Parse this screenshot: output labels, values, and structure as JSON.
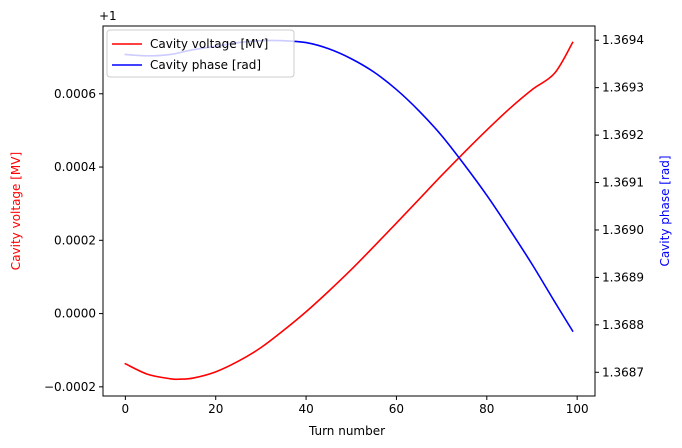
{
  "chart_data": {
    "type": "line",
    "xlabel": "Turn number",
    "ylabel_left": "Cavity voltage [MV]",
    "ylabel_right": "Cavity phase [rad]",
    "offset_label": "+1",
    "xlim": [
      -4.95,
      103.95
    ],
    "ylim_left": [
      -0.000225,
      0.000785
    ],
    "ylim_right": [
      1.36865,
      1.36943
    ],
    "x_ticks": [
      0,
      20,
      40,
      60,
      80,
      100
    ],
    "x_tick_labels": [
      "0",
      "20",
      "40",
      "60",
      "80",
      "100"
    ],
    "left_ticks": [
      -0.0002,
      0.0,
      0.0002,
      0.0004,
      0.0006
    ],
    "left_tick_labels": [
      "−0.0002",
      "0.0000",
      "0.0002",
      "0.0004",
      "0.0006"
    ],
    "right_ticks": [
      1.3687,
      1.3688,
      1.3689,
      1.369,
      1.3691,
      1.3692,
      1.3693,
      1.3694
    ],
    "right_tick_labels": [
      "1.3687",
      "1.3688",
      "1.3689",
      "1.3690",
      "1.3691",
      "1.3692",
      "1.3693",
      "1.3694"
    ],
    "legend_position": "top-left",
    "series": [
      {
        "name": "Cavity voltage [MV]",
        "axis": "left",
        "color": "#ff0000",
        "x": [
          0,
          5,
          10,
          12,
          15,
          20,
          25,
          30,
          35,
          40,
          45,
          50,
          55,
          60,
          65,
          70,
          75,
          80,
          85,
          90,
          95,
          99
        ],
        "y": [
          -0.000137,
          -0.000166,
          -0.000178,
          -0.000179,
          -0.000176,
          -0.000159,
          -0.00013,
          -9.3e-05,
          -4.6e-05,
          5e-06,
          6.1e-05,
          0.00012,
          0.000183,
          0.000247,
          0.000312,
          0.000377,
          0.00044,
          0.000501,
          0.000559,
          0.000611,
          0.000656,
          0.00074
        ]
      },
      {
        "name": "Cavity phase [rad]",
        "axis": "right",
        "color": "#0000ff",
        "x": [
          0,
          5,
          10,
          15,
          20,
          25,
          30,
          35,
          40,
          45,
          50,
          55,
          60,
          65,
          70,
          75,
          80,
          85,
          90,
          95,
          99
        ],
        "y": [
          1.36937,
          1.369367,
          1.36937,
          1.36938,
          1.369387,
          1.369395,
          1.369399,
          1.369399,
          1.369395,
          1.369382,
          1.369361,
          1.369333,
          1.369296,
          1.369251,
          1.369199,
          1.369138,
          1.369073,
          1.369002,
          1.368928,
          1.368849,
          1.368787
        ]
      }
    ]
  }
}
